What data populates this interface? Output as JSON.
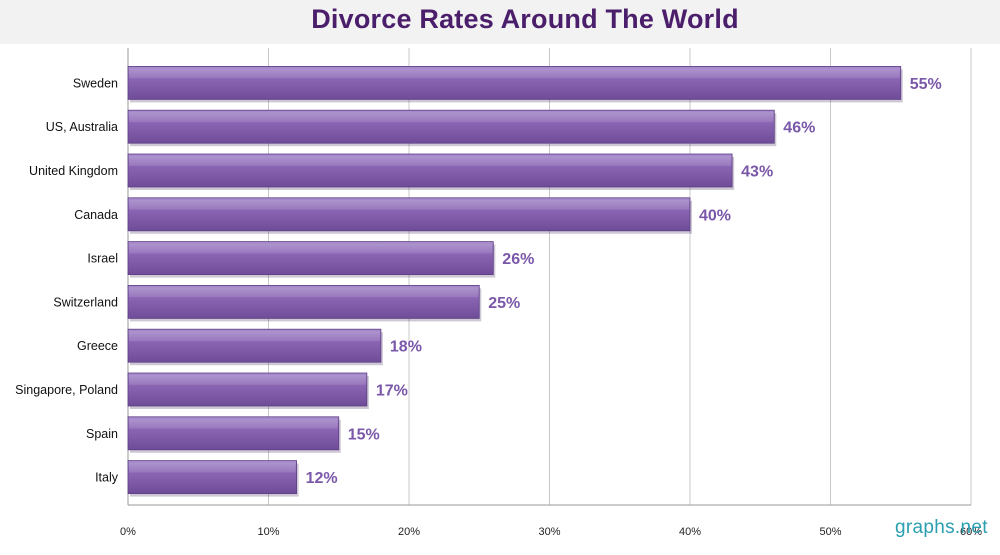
{
  "chart_data": {
    "type": "bar",
    "orientation": "horizontal",
    "title": "Divorce Rates Around The World",
    "xlabel": "",
    "ylabel": "",
    "categories": [
      "Sweden",
      "US, Australia",
      "United Kingdom",
      "Canada",
      "Israel",
      "Switzerland",
      "Greece",
      "Singapore, Poland",
      "Spain",
      "Italy"
    ],
    "values": [
      55,
      46,
      43,
      40,
      26,
      25,
      18,
      17,
      15,
      12
    ],
    "value_labels": [
      "55%",
      "46%",
      "43%",
      "40%",
      "26%",
      "25%",
      "18%",
      "17%",
      "15%",
      "12%"
    ],
    "xlim": [
      0,
      60
    ],
    "x_ticks": [
      0,
      10,
      20,
      30,
      40,
      50,
      60
    ],
    "x_tick_labels": [
      "0%",
      "10%",
      "20%",
      "30%",
      "40%",
      "50%",
      "60%"
    ],
    "grid": true,
    "colors": {
      "bar_fill": "#8560ae",
      "bar_highlight": "#a78bcb",
      "bar_edge": "#5e3f85",
      "data_label": "#7a57a8",
      "title": "#4b1e6b",
      "grid": "#c8c8c8"
    }
  },
  "watermark": "graphs.net"
}
